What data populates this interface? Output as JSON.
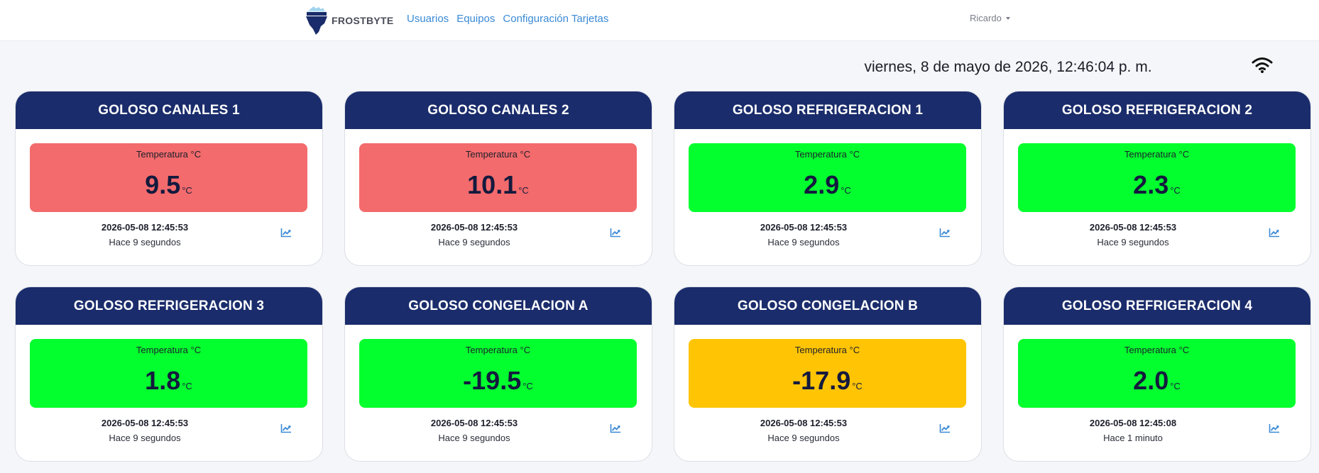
{
  "brand": {
    "name": "FROSTBYTE"
  },
  "nav": {
    "links": [
      "Usuarios",
      "Equipos",
      "Configuración Tarjetas"
    ],
    "user": "Ricardo"
  },
  "header": {
    "datetime": "viernes, 8 de mayo de 2026, 12:46:04 p. m."
  },
  "colors": {
    "header_bg": "#1a2c6b",
    "status_red": "#f36b6c",
    "status_green": "#04ff2e",
    "status_yellow": "#ffc404",
    "link": "#3a8ad6"
  },
  "icons": {
    "wifi": "wifi-icon",
    "chart": "chart-line-icon",
    "logo": "iceberg-logo-icon"
  },
  "cards": [
    {
      "title": "GOLOSO CANALES 1",
      "label": "Temperatura °C",
      "value": "9.5",
      "unit": "°C",
      "status": "red",
      "timestamp": "2026-05-08 12:45:53",
      "ago": "Hace 9 segundos"
    },
    {
      "title": "GOLOSO CANALES 2",
      "label": "Temperatura °C",
      "value": "10.1",
      "unit": "°C",
      "status": "red",
      "timestamp": "2026-05-08 12:45:53",
      "ago": "Hace 9 segundos"
    },
    {
      "title": "GOLOSO REFRIGERACION 1",
      "label": "Temperatura °C",
      "value": "2.9",
      "unit": "°C",
      "status": "green",
      "timestamp": "2026-05-08 12:45:53",
      "ago": "Hace 9 segundos"
    },
    {
      "title": "GOLOSO REFRIGERACION 2",
      "label": "Temperatura °C",
      "value": "2.3",
      "unit": "°C",
      "status": "green",
      "timestamp": "2026-05-08 12:45:53",
      "ago": "Hace 9 segundos"
    },
    {
      "title": "GOLOSO REFRIGERACION 3",
      "label": "Temperatura °C",
      "value": "1.8",
      "unit": "°C",
      "status": "green",
      "timestamp": "2026-05-08 12:45:53",
      "ago": "Hace 9 segundos"
    },
    {
      "title": "GOLOSO CONGELACION A",
      "label": "Temperatura °C",
      "value": "-19.5",
      "unit": "°C",
      "status": "green",
      "timestamp": "2026-05-08 12:45:53",
      "ago": "Hace 9 segundos"
    },
    {
      "title": "GOLOSO CONGELACION B",
      "label": "Temperatura °C",
      "value": "-17.9",
      "unit": "°C",
      "status": "yellow",
      "timestamp": "2026-05-08 12:45:53",
      "ago": "Hace 9 segundos"
    },
    {
      "title": "GOLOSO REFRIGERACION 4",
      "label": "Temperatura °C",
      "value": "2.0",
      "unit": "°C",
      "status": "green",
      "timestamp": "2026-05-08 12:45:08",
      "ago": "Hace 1 minuto"
    }
  ]
}
